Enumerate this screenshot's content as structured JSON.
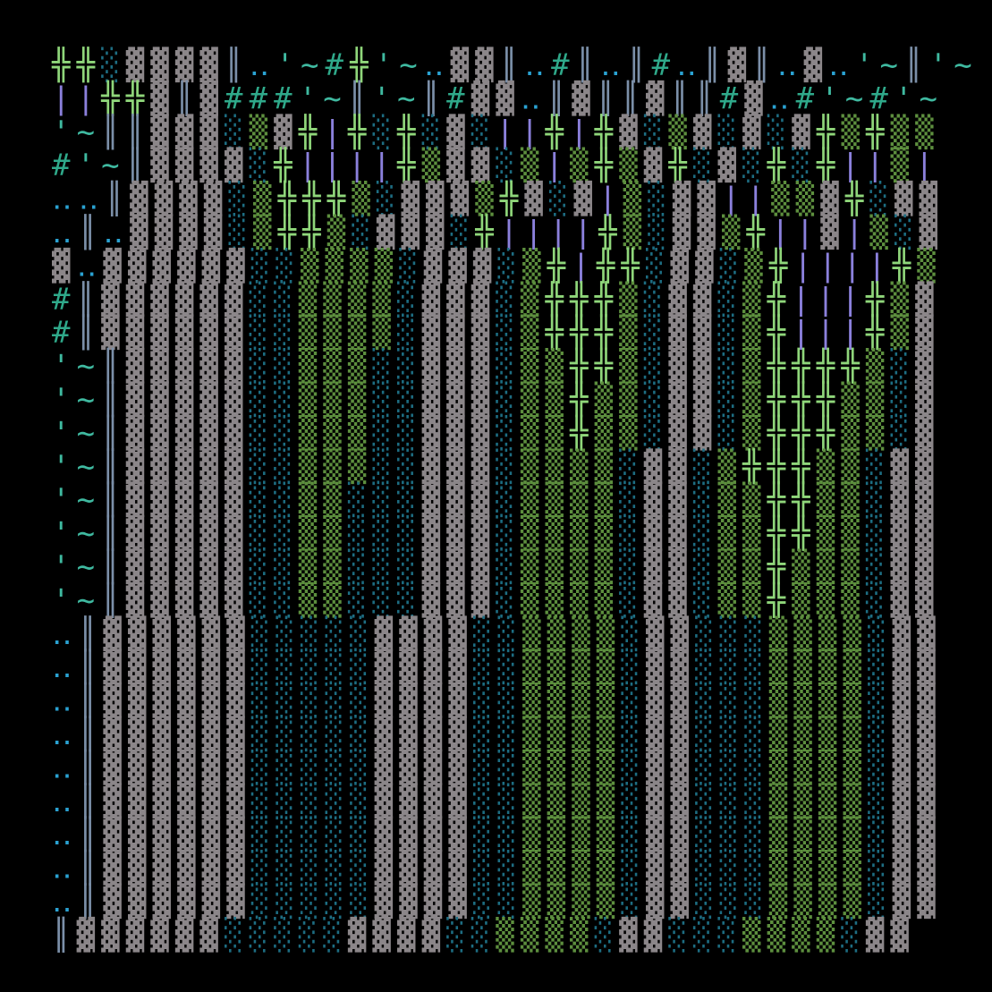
{
  "grid": {
    "palette": {
      "▓": "#8b8689",
      "▒": "#5d8f3e",
      "░": "#1d6d82",
      "╬": "#8fd67a",
      "|": "#8b80dc",
      "║": "#7b8fa8",
      "#": "#2fa98a",
      "'~": "#3fb9a0",
      "‥": "#2aa2d2"
    },
    "rows": [
      [
        "╬╬",
        "░",
        "▓▓▓▓",
        "║",
        "‥",
        "'~",
        "#",
        "╬",
        "'~",
        "‥",
        "▓▓",
        "║",
        "‥",
        "#",
        "║",
        "‥",
        "║",
        "#",
        "‥",
        "║",
        "▓",
        "║",
        "‥",
        "▓",
        "‥",
        "'~",
        "║",
        "'~"
      ],
      [
        "||",
        "╬╬",
        "▓",
        "║",
        "▓",
        "###",
        "'~",
        "║",
        "'~",
        "║",
        "#",
        "▓▓",
        "‥",
        "║",
        "▓",
        "║║",
        "▓",
        "║║",
        "#",
        "▓",
        "‥",
        "#",
        "'~",
        "#",
        "'~"
      ],
      [
        "'~",
        "║║",
        "▓▓▓",
        "░",
        "▒",
        "▓",
        "╬",
        "|",
        "╬",
        "░",
        "╬",
        "░",
        "▓",
        "░",
        "||",
        "╬",
        "|",
        "╬",
        "▓",
        "░",
        "▒",
        "▓",
        "░",
        "▓",
        "░",
        "▓",
        "╬",
        "▒",
        "╬",
        "▒▒"
      ],
      [
        "#",
        "'~",
        "║",
        "▓▓▓▓",
        "░",
        "╬",
        "||||",
        "╬",
        "▒",
        "▓▓",
        "░",
        "▒",
        "|",
        "▒",
        "╬",
        "▒",
        "▓",
        "╬",
        "░",
        "▓",
        "░",
        "╬",
        "░",
        "╬",
        "||",
        "▒",
        "|"
      ],
      [
        "‥‥",
        "║",
        "▓▓▓▓",
        "░",
        "▒",
        "╬╬╬",
        "▒",
        "░",
        "▓▓▓",
        "▒",
        "╬",
        "▓",
        "░",
        "▓",
        "|",
        "▒",
        "░",
        "▓▓",
        "||",
        "▒▒",
        "▓",
        "╬",
        "░",
        "▓▓"
      ],
      [
        "‥",
        "║",
        "‥",
        "▓▓▓▓",
        "░",
        "▒",
        "╬╬",
        "▒",
        "░",
        "▓▓▓",
        "░",
        "╬",
        "||||",
        "╬",
        "▒",
        "░",
        "▓▓",
        "▒",
        "╬",
        "||",
        "▓",
        "|",
        "▒",
        "░",
        "▓"
      ],
      [
        "▓",
        "‥",
        "▓▓▓▓▓▓",
        "░░",
        "▒▒▒▒",
        "░",
        "▓▓▓",
        "░",
        "▒",
        "╬",
        "|",
        "╬╬",
        "░",
        "▓▓",
        "░",
        "▒",
        "╬",
        "||||",
        "╬",
        "▒"
      ],
      [
        "#",
        "║",
        "▓▓▓▓▓▓",
        "░░",
        "▒▒▒▒",
        "░",
        "▓▓▓",
        "░",
        "▒",
        "╬╬╬",
        "▒",
        "░",
        "▓▓",
        "░",
        "▒",
        "╬",
        "|||",
        "╬",
        "▒",
        "▓"
      ],
      [
        "#",
        "║",
        "▓▓▓▓▓▓",
        "░░",
        "▒▒▒▒",
        "░",
        "▓▓▓",
        "░",
        "▒",
        "╬╬╬",
        "▒",
        "░",
        "▓▓",
        "░",
        "▒",
        "╬",
        "|||",
        "╬",
        "▒",
        "▓"
      ],
      [
        "'~",
        "║",
        "▓▓▓▓▓",
        "░░",
        "▒▒▒",
        "░░",
        "▓▓▓",
        "░",
        "▒▒",
        "╬╬",
        "▒",
        "░",
        "▓▓",
        "░",
        "▒",
        "╬╬╬╬",
        "▒",
        "░",
        "▓"
      ],
      [
        "'~",
        "║",
        "▓▓▓▓▓",
        "░░",
        "▒▒▒",
        "░░",
        "▓▓▓",
        "░",
        "▒▒",
        "╬",
        "▒▒",
        "░",
        "▓▓",
        "░",
        "▒",
        "╬╬╬",
        "▒▒",
        "░",
        "▓"
      ],
      [
        "'~",
        "║",
        "▓▓▓▓▓",
        "░░",
        "▒▒▒",
        "░░",
        "▓▓▓",
        "░",
        "▒▒",
        "╬",
        "▒▒",
        "░",
        "▓▓",
        "░",
        "▒",
        "╬╬╬",
        "▒▒",
        "░",
        "▓"
      ],
      [
        "'~",
        "║",
        "▓▓▓▓▓",
        "░░",
        "▒▒▒",
        "░░",
        "▓▓▓",
        "░",
        "▒▒▒▒",
        "░",
        "▓▓",
        "░",
        "▒",
        "╬╬╬",
        "▒▒",
        "░",
        "▓▓"
      ],
      [
        "'~",
        "║",
        "▓▓▓▓▓",
        "░░",
        "▒▒",
        "░░░",
        "▓▓▓",
        "░",
        "▒▒▒▒",
        "░",
        "▓▓",
        "░",
        "▒▒",
        "╬╬",
        "▒▒",
        "░",
        "▓▓"
      ],
      [
        "'~",
        "║",
        "▓▓▓▓▓",
        "░░",
        "▒▒",
        "░░░",
        "▓▓▓",
        "░",
        "▒▒▒▒",
        "░",
        "▓▓",
        "░",
        "▒▒",
        "╬╬",
        "▒▒",
        "░",
        "▓▓"
      ],
      [
        "'~",
        "║",
        "▓▓▓▓▓",
        "░░",
        "▒▒",
        "░░░",
        "▓▓▓",
        "░",
        "▒▒▒▒",
        "░",
        "▓▓",
        "░",
        "▒▒",
        "╬",
        "▒▒▒",
        "░",
        "▓▓"
      ],
      [
        "'~",
        "║",
        "▓▓▓▓▓",
        "░░",
        "▒▒",
        "░░░",
        "▓▓▓",
        "░",
        "▒▒▒▒",
        "░",
        "▓▓",
        "░",
        "▒▒",
        "╬",
        "▒▒▒",
        "░",
        "▓▓"
      ],
      [
        "‥",
        "║",
        "▓▓▓▓▓▓",
        "░░░░░",
        "▓▓▓▓",
        "░░",
        "▒▒▒▒",
        "░",
        "▓▓",
        "░░░",
        "▒▒▒▒",
        "░",
        "▓▓"
      ],
      [
        "‥",
        "║",
        "▓▓▓▓▓▓",
        "░░░░░",
        "▓▓▓▓",
        "░░",
        "▒▒▒▒",
        "░",
        "▓▓",
        "░░░",
        "▒▒▒▒",
        "░",
        "▓▓"
      ],
      [
        "‥",
        "║",
        "▓▓▓▓▓▓",
        "░░░░░",
        "▓▓▓▓",
        "░░",
        "▒▒▒▒",
        "░",
        "▓▓",
        "░░░",
        "▒▒▒▒",
        "░",
        "▓▓"
      ],
      [
        "‥",
        "║",
        "▓▓▓▓▓▓",
        "░░░░░",
        "▓▓▓▓",
        "░░",
        "▒▒▒▒",
        "░",
        "▓▓",
        "░░░",
        "▒▒▒▒",
        "░",
        "▓▓"
      ],
      [
        "‥",
        "║",
        "▓▓▓▓▓▓",
        "░░░░░",
        "▓▓▓▓",
        "░░",
        "▒▒▒▒",
        "░",
        "▓▓",
        "░░░",
        "▒▒▒▒",
        "░",
        "▓▓"
      ],
      [
        "‥",
        "║",
        "▓▓▓▓▓▓",
        "░░░░░",
        "▓▓▓▓",
        "░░",
        "▒▒▒▒",
        "░",
        "▓▓",
        "░░░",
        "▒▒▒▒",
        "░",
        "▓▓"
      ],
      [
        "‥",
        "║",
        "▓▓▓▓▓▓",
        "░░░░░",
        "▓▓▓▓",
        "░░",
        "▒▒▒▒",
        "░",
        "▓▓",
        "░░░",
        "▒▒▒▒",
        "░",
        "▓▓"
      ],
      [
        "‥",
        "║",
        "▓▓▓▓▓▓",
        "░░░░░",
        "▓▓▓▓",
        "░░",
        "▒▒▒▒",
        "░",
        "▓▓",
        "░░░",
        "▒▒▒▒",
        "░",
        "▓▓"
      ],
      [
        "‥",
        "║",
        "▓▓▓▓▓▓",
        "░░░░░",
        "▓▓▓▓",
        "░░",
        "▒▒▒▒",
        "░",
        "▓▓",
        "░░░",
        "▒▒▒▒",
        "░",
        "▓▓"
      ],
      [
        "║",
        "▓▓▓▓▓▓",
        "░░░░░",
        "▓▓▓▓",
        "░░",
        "▒▒▒▒",
        "░",
        "▓▓",
        "░░░",
        "▒▒▒▒",
        "░",
        "▓▓"
      ]
    ]
  }
}
